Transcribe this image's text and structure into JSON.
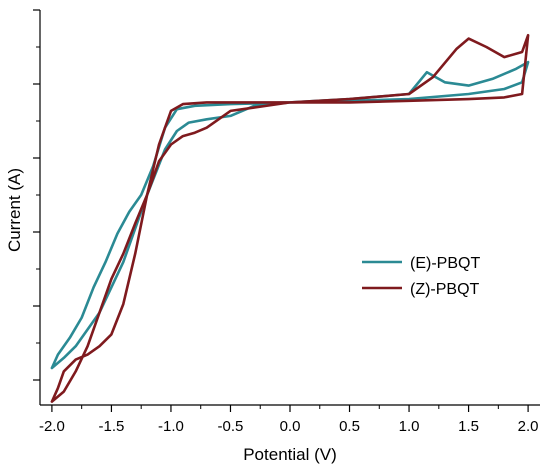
{
  "chart_data": {
    "type": "line",
    "title": "",
    "xlabel": "Potential (V)",
    "ylabel": "Current (A)",
    "xlim": [
      -2.1,
      2.1
    ],
    "ylim": [
      -1.8,
      0.55
    ],
    "x_ticks": [
      "-2.0",
      "-1.5",
      "-1.0",
      "-0.5",
      "0.0",
      "0.5",
      "1.0",
      "1.5",
      "2.0"
    ],
    "y_tick_labels_shown": false,
    "grid": false,
    "legend_position": "center-right",
    "series": [
      {
        "name": "(E)-PBQT",
        "color": "#2b8a94",
        "x": [
          -2.0,
          -1.9,
          -1.8,
          -1.6,
          -1.4,
          -1.2,
          -1.05,
          -0.95,
          -0.85,
          -0.7,
          -0.5,
          -0.3,
          0.0,
          0.5,
          1.0,
          1.15,
          1.3,
          1.5,
          1.7,
          1.9,
          2.0,
          1.95,
          1.8,
          1.5,
          1.0,
          0.5,
          0.0,
          -0.5,
          -0.8,
          -0.95,
          -1.05,
          -1.15,
          -1.25,
          -1.35,
          -1.45,
          -1.55,
          -1.65,
          -1.75,
          -1.85,
          -1.95,
          -2.0
        ],
        "y": [
          -1.58,
          -1.52,
          -1.45,
          -1.25,
          -0.95,
          -0.55,
          -0.28,
          -0.17,
          -0.12,
          -0.1,
          -0.08,
          -0.02,
          0.0,
          0.02,
          0.05,
          0.18,
          0.12,
          0.1,
          0.14,
          0.2,
          0.24,
          0.12,
          0.08,
          0.05,
          0.02,
          0.01,
          0.0,
          -0.01,
          -0.02,
          -0.04,
          -0.15,
          -0.38,
          -0.55,
          -0.65,
          -0.78,
          -0.95,
          -1.1,
          -1.28,
          -1.4,
          -1.5,
          -1.58
        ]
      },
      {
        "name": "(Z)-PBQT",
        "color": "#7f1a1e",
        "x": [
          -2.0,
          -1.95,
          -1.9,
          -1.8,
          -1.7,
          -1.6,
          -1.5,
          -1.4,
          -1.3,
          -1.2,
          -1.1,
          -1.0,
          -0.9,
          -0.7,
          -0.5,
          0.0,
          0.5,
          1.0,
          1.2,
          1.4,
          1.5,
          1.65,
          1.8,
          1.95,
          2.0,
          1.95,
          1.8,
          1.5,
          1.0,
          0.5,
          0.0,
          -0.5,
          -0.6,
          -0.7,
          -0.8,
          -0.9,
          -1.0,
          -1.1,
          -1.2,
          -1.3,
          -1.4,
          -1.5,
          -1.6,
          -1.7,
          -1.8,
          -1.9,
          -2.0
        ],
        "y": [
          -1.78,
          -1.7,
          -1.6,
          -1.53,
          -1.5,
          -1.45,
          -1.38,
          -1.2,
          -0.9,
          -0.55,
          -0.25,
          -0.05,
          -0.01,
          0.0,
          0.0,
          0.0,
          0.02,
          0.05,
          0.15,
          0.32,
          0.38,
          0.33,
          0.27,
          0.3,
          0.4,
          0.05,
          0.03,
          0.02,
          0.01,
          0.0,
          0.0,
          -0.05,
          -0.1,
          -0.15,
          -0.18,
          -0.2,
          -0.25,
          -0.35,
          -0.55,
          -0.72,
          -0.9,
          -1.05,
          -1.25,
          -1.45,
          -1.6,
          -1.72,
          -1.78
        ]
      }
    ]
  }
}
